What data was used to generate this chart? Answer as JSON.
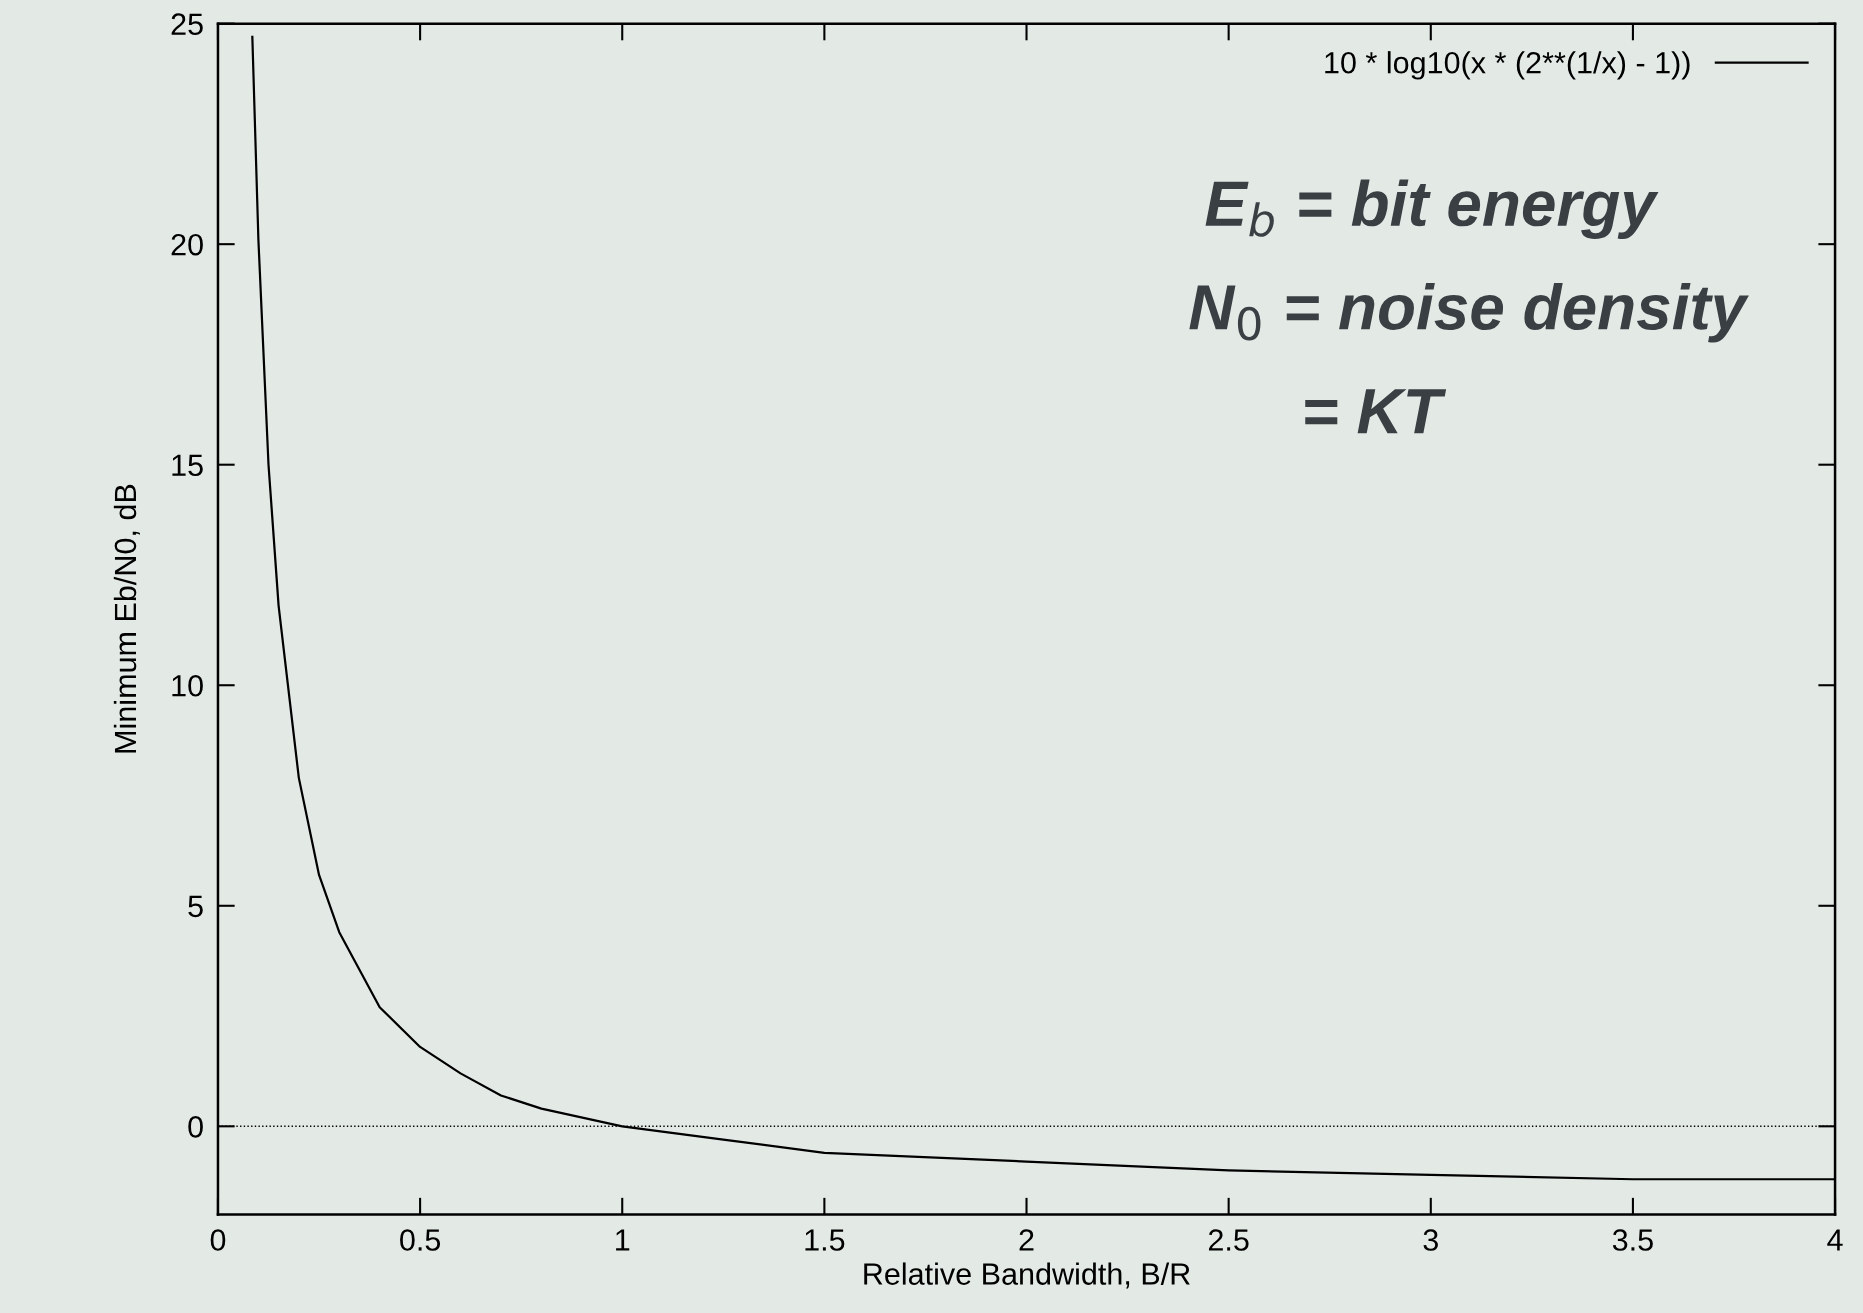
{
  "chart_data": {
    "type": "line",
    "xlabel": "Relative Bandwidth, B/R",
    "ylabel": "Minimum Eb/N0, dB",
    "x": [
      0.085,
      0.1,
      0.125,
      0.15,
      0.2,
      0.25,
      0.3,
      0.4,
      0.5,
      0.6,
      0.7,
      0.8,
      1,
      1.25,
      1.5,
      2,
      2.5,
      3,
      3.5,
      4
    ],
    "series": [
      {
        "name": "10 * log10(x * (2**(1/x) - 1))",
        "color": "#000000",
        "values": [
          24.7,
          20.1,
          15.0,
          11.8,
          7.9,
          5.7,
          4.4,
          2.7,
          1.8,
          1.2,
          0.7,
          0.4,
          0,
          -0.3,
          -0.6,
          -0.8,
          -1.0,
          -1.1,
          -1.2,
          -1.2
        ]
      }
    ],
    "xlim": [
      0,
      4
    ],
    "xticks": [
      0,
      0.5,
      1,
      1.5,
      2,
      2.5,
      3,
      3.5,
      4
    ],
    "ylim": [
      -2,
      25
    ],
    "yticks": [
      0,
      5,
      10,
      15,
      20,
      25
    ],
    "ref_lines": [
      {
        "axis": "y",
        "value": 0,
        "color": "#000000",
        "line_style": "dotted"
      }
    ],
    "annotations": [
      "E$_{b}$ = bit energy",
      "N$_{0}$ = noise density",
      "= KT"
    ],
    "legend": "top right",
    "grid": false,
    "marker": "none",
    "line_style": "solid"
  }
}
